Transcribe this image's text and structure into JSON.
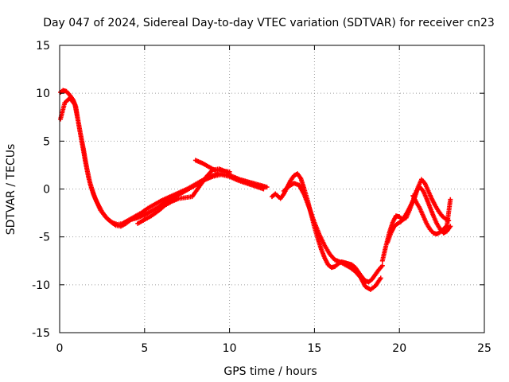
{
  "chart_data": {
    "type": "scatter",
    "title": "Day 047 of 2024, Sidereal Day-to-day VTEC variation (SDTVAR) for receiver cn23",
    "xlabel": "GPS time / hours",
    "ylabel": "SDTVAR / TECUs",
    "xlim": [
      0,
      25
    ],
    "ylim": [
      -15,
      15
    ],
    "xticks": [
      0,
      5,
      10,
      15,
      20,
      25
    ],
    "yticks": [
      -15,
      -10,
      -5,
      0,
      5,
      10,
      15
    ],
    "grid": true,
    "marker": "plus",
    "color": "#ff0000",
    "series": [
      {
        "name": "trace-a",
        "x": [
          0.05,
          0.2,
          0.4,
          0.6,
          0.8,
          0.95,
          1.05,
          1.2,
          1.4,
          1.6,
          1.8,
          2.0,
          2.2,
          2.5,
          2.8,
          3.1,
          3.4,
          3.7,
          4.0,
          4.4,
          4.8,
          5.2,
          5.6,
          6.0,
          6.5,
          7.0,
          7.5,
          8.0,
          8.3,
          8.6,
          9.0,
          9.4,
          9.8,
          10.2,
          10.6,
          11.0,
          11.4,
          11.8,
          12.2
        ],
        "y": [
          10.1,
          10.3,
          10.2,
          9.8,
          9.3,
          8.6,
          7.5,
          6.0,
          4.2,
          2.2,
          0.5,
          -0.6,
          -1.4,
          -2.4,
          -3.1,
          -3.5,
          -3.7,
          -3.6,
          -3.3,
          -2.9,
          -2.5,
          -2.0,
          -1.6,
          -1.2,
          -0.8,
          -0.4,
          0.0,
          0.5,
          0.8,
          1.1,
          1.4,
          1.6,
          1.5,
          1.3,
          1.0,
          0.8,
          0.6,
          0.4,
          0.2
        ]
      },
      {
        "name": "trace-b",
        "x": [
          0.05,
          0.3,
          0.6,
          0.9,
          1.1,
          1.3,
          1.5,
          1.7,
          1.9,
          2.1,
          2.4,
          2.7,
          3.0,
          3.3,
          3.6,
          3.9,
          4.2,
          4.6,
          5.0,
          5.4,
          5.8,
          6.2,
          6.6,
          7.0,
          7.4,
          7.8,
          8.2,
          8.6,
          9.0,
          9.5,
          10.0,
          10.5,
          11.0,
          11.5,
          12.0
        ],
        "y": [
          7.3,
          9.0,
          9.5,
          8.8,
          7.0,
          5.0,
          3.0,
          1.2,
          0.0,
          -1.0,
          -2.2,
          -2.9,
          -3.4,
          -3.8,
          -3.9,
          -3.6,
          -3.2,
          -3.0,
          -2.7,
          -2.3,
          -1.9,
          -1.4,
          -1.0,
          -0.6,
          -0.2,
          0.2,
          0.6,
          1.0,
          1.3,
          1.5,
          1.3,
          0.9,
          0.6,
          0.3,
          0.0
        ]
      },
      {
        "name": "trace-c",
        "x": [
          4.6,
          5.0,
          5.4,
          5.8,
          6.2,
          6.6,
          7.0,
          7.4,
          7.8,
          8.2,
          8.6,
          9.0,
          9.4,
          9.8,
          10.0
        ],
        "y": [
          -3.6,
          -3.2,
          -2.8,
          -2.3,
          -1.7,
          -1.3,
          -1.0,
          -0.9,
          -0.8,
          0.2,
          1.2,
          2.0,
          2.1,
          1.8,
          1.6
        ]
      },
      {
        "name": "trace-d",
        "x": [
          8.0,
          8.4,
          8.8,
          9.2,
          9.6,
          10.0
        ],
        "y": [
          3.0,
          2.7,
          2.3,
          1.9,
          1.9,
          1.8
        ]
      },
      {
        "name": "trace-e",
        "x": [
          12.5,
          12.7,
          13.0,
          13.2,
          13.4,
          13.6,
          13.8,
          14.0,
          14.2,
          14.4,
          14.6,
          14.8,
          15.0,
          15.2,
          15.4,
          15.6,
          15.8,
          16.0,
          16.2,
          16.4,
          16.6,
          16.8,
          17.0,
          17.2,
          17.4,
          17.6,
          17.8,
          18.0,
          18.2,
          18.4,
          18.6,
          18.8,
          19.0
        ],
        "y": [
          -0.8,
          -0.5,
          -1.0,
          -0.5,
          0.2,
          0.9,
          1.4,
          1.6,
          1.1,
          0.0,
          -1.2,
          -2.6,
          -4.0,
          -5.2,
          -6.3,
          -7.2,
          -7.9,
          -8.2,
          -8.1,
          -7.8,
          -7.6,
          -7.7,
          -7.8,
          -7.9,
          -8.2,
          -8.7,
          -9.2,
          -9.6,
          -9.7,
          -9.4,
          -8.9,
          -8.4,
          -8.0
        ]
      },
      {
        "name": "trace-f",
        "x": [
          13.2,
          13.5,
          13.8,
          14.1,
          14.4,
          14.7,
          15.0,
          15.3,
          15.6,
          15.9,
          16.2,
          16.5,
          16.8,
          17.1,
          17.4,
          17.7,
          18.0,
          18.3,
          18.6,
          18.9
        ],
        "y": [
          -0.2,
          0.3,
          0.6,
          0.4,
          -0.6,
          -2.0,
          -3.5,
          -4.8,
          -5.9,
          -6.8,
          -7.4,
          -7.6,
          -7.9,
          -8.2,
          -8.6,
          -9.2,
          -10.2,
          -10.5,
          -10.1,
          -9.3
        ]
      },
      {
        "name": "trace-g",
        "x": [
          19.0,
          19.2,
          19.4,
          19.6,
          19.8,
          20.0,
          20.2,
          20.4,
          20.6,
          20.8,
          21.0,
          21.2,
          21.4,
          21.6,
          21.8,
          22.0,
          22.2,
          22.4,
          22.6,
          22.8,
          23.0
        ],
        "y": [
          -7.5,
          -6.0,
          -4.6,
          -3.5,
          -2.8,
          -2.9,
          -3.2,
          -3.0,
          -2.2,
          -1.2,
          -0.2,
          0.2,
          -0.2,
          -1.0,
          -1.9,
          -2.8,
          -3.6,
          -4.2,
          -4.6,
          -4.4,
          -3.9
        ]
      },
      {
        "name": "trace-h",
        "x": [
          19.3,
          19.5,
          19.7,
          19.9,
          20.1,
          20.3,
          20.5,
          20.7,
          20.9,
          21.1,
          21.3,
          21.5,
          21.7,
          21.9,
          22.1,
          22.3,
          22.5,
          22.7,
          22.9
        ],
        "y": [
          -5.6,
          -4.6,
          -3.9,
          -3.6,
          -3.4,
          -2.9,
          -2.3,
          -1.6,
          -0.9,
          0.2,
          1.0,
          0.6,
          -0.2,
          -1.0,
          -1.7,
          -2.3,
          -2.8,
          -3.1,
          -3.3
        ]
      },
      {
        "name": "trace-i",
        "x": [
          20.8,
          21.0,
          21.2,
          21.4,
          21.6,
          21.8,
          22.0,
          22.2,
          22.4,
          22.6,
          22.8,
          23.0
        ],
        "y": [
          -0.7,
          -1.4,
          -2.0,
          -2.8,
          -3.6,
          -4.2,
          -4.6,
          -4.7,
          -4.5,
          -4.2,
          -3.8,
          -1.1
        ]
      }
    ]
  }
}
